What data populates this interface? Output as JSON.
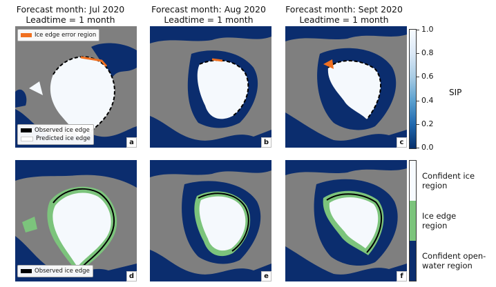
{
  "headers": [
    {
      "month": "Forecast month: Jul 2020",
      "lead": "Leadtime = 1 month"
    },
    {
      "month": "Forecast month: Aug 2020",
      "lead": "Leadtime = 1 month"
    },
    {
      "month": "Forecast month: Sept 2020",
      "lead": "Leadtime = 1 month"
    }
  ],
  "panel_labels": [
    "a",
    "b",
    "c",
    "d",
    "e",
    "f"
  ],
  "legend_top": {
    "error": "Ice edge error region",
    "observed": "Observed ice edge",
    "predicted": "Predicted ice edge"
  },
  "legend_bottom": {
    "observed": "Observed ice edge"
  },
  "colorbar_top": {
    "title": "SIP",
    "ticks": [
      "1.0",
      "0.8",
      "0.6",
      "0.4",
      "0.2",
      "0.0"
    ],
    "min": 0.0,
    "max": 1.0
  },
  "colorbar_bottom": {
    "categories": [
      {
        "line1": "Confident ice",
        "line2": "region"
      },
      {
        "line1": "Ice edge",
        "line2": "region"
      },
      {
        "line1": "Confident open-",
        "line2": "water region"
      }
    ]
  },
  "colors": {
    "land": "#7f7f7f",
    "ocean": "#0b2d6e",
    "ice": "#f5f9fd",
    "edge_region": "#7cc47c",
    "error": "#f07020"
  }
}
